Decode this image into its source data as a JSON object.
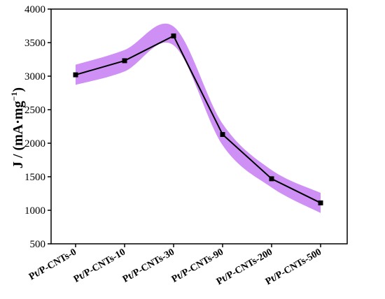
{
  "chart_data": {
    "type": "line",
    "categories": [
      "Pt/P-CNTs-0",
      "Pt/P-CNTs-10",
      "Pt/P-CNTs-30",
      "Pt/P-CNTs-90",
      "Pt/P-CNTs-200",
      "Pt/P-CNTs-500"
    ],
    "series": [
      {
        "values": [
          3020,
          3230,
          3600,
          2130,
          1470,
          1110
        ],
        "error_band": [
          150,
          160,
          140,
          160,
          130,
          150
        ],
        "line_color": "#000000",
        "band_color": "#c77df5",
        "marker": "square"
      }
    ],
    "ylabel_main": "J / (mA·mg",
    "ylabel_sup": "−1",
    "ylabel_close": ")",
    "ylim": [
      500,
      4000
    ],
    "yticks": [
      "500",
      "1000",
      "1500",
      "2000",
      "2500",
      "3000",
      "3500",
      "4000"
    ],
    "grid": false,
    "legend": "none"
  }
}
